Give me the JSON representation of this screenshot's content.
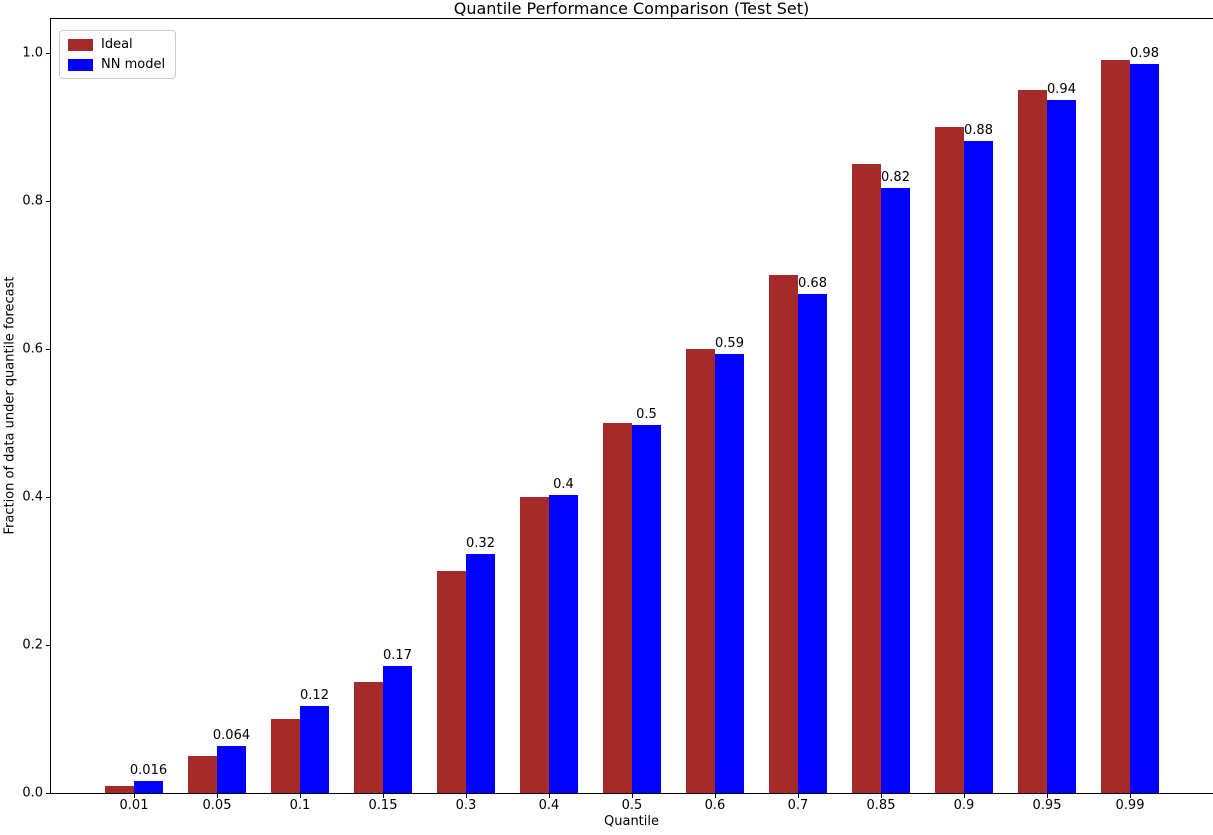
{
  "chart_data": {
    "type": "bar",
    "title": "Quantile Performance Comparison (Test Set)",
    "xlabel": "Quantile",
    "ylabel": "Fraction of data under quantile forecast",
    "categories": [
      "0.01",
      "0.05",
      "0.1",
      "0.15",
      "0.3",
      "0.4",
      "0.5",
      "0.6",
      "0.7",
      "0.85",
      "0.9",
      "0.95",
      "0.99"
    ],
    "series": [
      {
        "name": "Ideal",
        "color": "#A52A2A",
        "values": [
          0.01,
          0.05,
          0.1,
          0.15,
          0.3,
          0.4,
          0.5,
          0.6,
          0.7,
          0.85,
          0.9,
          0.95,
          0.99
        ]
      },
      {
        "name": "NN model",
        "color": "#0000FF",
        "values": [
          0.016,
          0.064,
          0.118,
          0.172,
          0.323,
          0.403,
          0.497,
          0.593,
          0.675,
          0.818,
          0.881,
          0.936,
          0.985
        ],
        "value_labels": [
          "0.016",
          "0.064",
          "0.12",
          "0.17",
          "0.32",
          "0.4",
          "0.5",
          "0.59",
          "0.68",
          "0.82",
          "0.88",
          "0.94",
          "0.98"
        ]
      }
    ],
    "yticks": {
      "values": [
        0.0,
        0.2,
        0.4,
        0.6,
        0.8,
        1.0
      ],
      "labels": [
        "0.0",
        "0.2",
        "0.4",
        "0.6",
        "0.8",
        "1.0"
      ]
    },
    "ylim": [
      0.0,
      1.046
    ],
    "grid": false,
    "legend_position": "upper-left",
    "axis_color": "#000000",
    "text_color": "#000000"
  }
}
